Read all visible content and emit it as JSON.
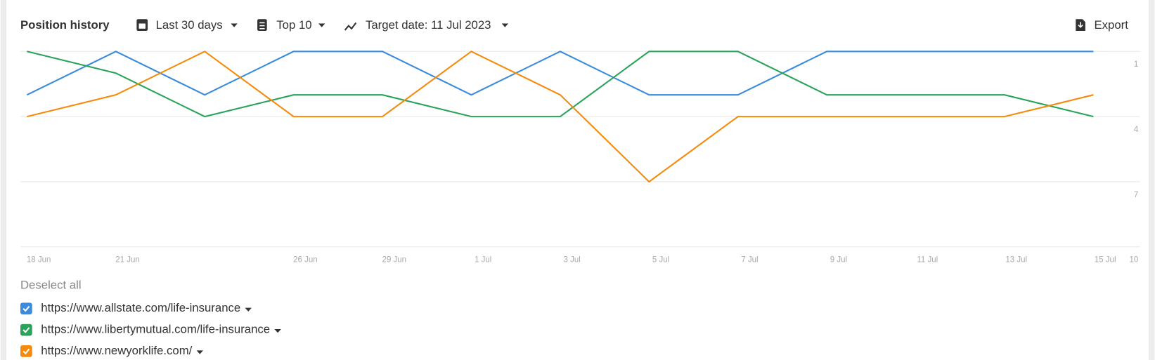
{
  "toolbar": {
    "title": "Position history",
    "period": "Last 30 days",
    "top": "Top 10",
    "target_date": "Target date: 11 Jul 2023",
    "export": "Export"
  },
  "legend": {
    "deselect_all": "Deselect all"
  },
  "chart_data": {
    "type": "line",
    "categories": [
      "18 Jun",
      "21 Jun",
      null,
      "26 Jun",
      "29 Jun",
      "1 Jul",
      "3 Jul",
      "5 Jul",
      "7 Jul",
      "9 Jul",
      "11 Jul",
      "13 Jul",
      "15 Jul"
    ],
    "series": [
      {
        "name": "https://www.allstate.com/life-insurance",
        "color": "#3a8bdb",
        "values": [
          3,
          1,
          3,
          1,
          1,
          3,
          1,
          3,
          3,
          1,
          1,
          1,
          1
        ]
      },
      {
        "name": "https://www.libertymutual.com/life-insurance",
        "color": "#2aa35a",
        "values": [
          1,
          2,
          4,
          3,
          3,
          4,
          4,
          1,
          1,
          3,
          3,
          3,
          4
        ]
      },
      {
        "name": "https://www.newyorklife.com/",
        "color": "#f58a0b",
        "values": [
          4,
          3,
          1,
          4,
          4,
          1,
          3,
          7,
          4,
          4,
          4,
          4,
          3
        ]
      }
    ],
    "ylim": [
      1,
      10
    ],
    "yticks": [
      1,
      4,
      7,
      10
    ],
    "y_inverted": true,
    "grid": true
  }
}
